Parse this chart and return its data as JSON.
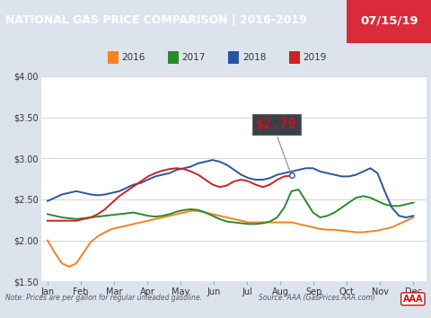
{
  "title_left": "NATIONAL GAS PRICE COMPARISON | 2016-2019",
  "title_right": "07/15/19",
  "title_bg_color": "#1b4586",
  "title_right_bg_color": "#d92b3a",
  "title_text_color": "#ffffff",
  "note_text": "Note: Prices are per gallon for regular unleaded gasoline.",
  "source_text": "Source: AAA (GasPrices.AAA.com)",
  "bg_color": "#dde3ed",
  "plot_bg_color": "#ffffff",
  "ylim": [
    1.5,
    4.0
  ],
  "yticks": [
    1.5,
    2.0,
    2.5,
    3.0,
    3.5,
    4.0
  ],
  "months": [
    "Jan",
    "Feb",
    "Mar",
    "Apr",
    "May",
    "Jun",
    "Jul",
    "Aug",
    "Sep",
    "Oct",
    "Nov",
    "Dec"
  ],
  "annotation_text": "$2.79",
  "annotation_box_color": "#3a3f4a",
  "annotation_text_color": "#cc1111",
  "colors": {
    "2016": "#f5821f",
    "2017": "#2a8a2a",
    "2018": "#2955a0",
    "2019": "#cc2222"
  },
  "data_2016": [
    2.0,
    1.85,
    1.72,
    1.68,
    1.72,
    1.85,
    1.98,
    2.05,
    2.1,
    2.14,
    2.16,
    2.18,
    2.2,
    2.22,
    2.24,
    2.26,
    2.28,
    2.3,
    2.32,
    2.34,
    2.36,
    2.36,
    2.34,
    2.32,
    2.3,
    2.28,
    2.26,
    2.24,
    2.22,
    2.22,
    2.22,
    2.22,
    2.22,
    2.22,
    2.22,
    2.2,
    2.18,
    2.16,
    2.14,
    2.13,
    2.13,
    2.12,
    2.11,
    2.1,
    2.1,
    2.11,
    2.12,
    2.14,
    2.16,
    2.2,
    2.24,
    2.28
  ],
  "data_2017": [
    2.32,
    2.3,
    2.28,
    2.27,
    2.26,
    2.27,
    2.28,
    2.29,
    2.3,
    2.31,
    2.32,
    2.33,
    2.34,
    2.32,
    2.3,
    2.29,
    2.3,
    2.32,
    2.35,
    2.37,
    2.38,
    2.37,
    2.34,
    2.3,
    2.26,
    2.23,
    2.22,
    2.21,
    2.2,
    2.2,
    2.21,
    2.23,
    2.28,
    2.4,
    2.6,
    2.62,
    2.48,
    2.34,
    2.28,
    2.3,
    2.34,
    2.4,
    2.46,
    2.52,
    2.54,
    2.52,
    2.48,
    2.44,
    2.42,
    2.42,
    2.44,
    2.46
  ],
  "data_2018": [
    2.48,
    2.52,
    2.56,
    2.58,
    2.6,
    2.58,
    2.56,
    2.55,
    2.56,
    2.58,
    2.6,
    2.64,
    2.68,
    2.7,
    2.74,
    2.78,
    2.8,
    2.82,
    2.86,
    2.88,
    2.9,
    2.94,
    2.96,
    2.98,
    2.96,
    2.92,
    2.86,
    2.8,
    2.76,
    2.74,
    2.74,
    2.76,
    2.8,
    2.82,
    2.84,
    2.86,
    2.88,
    2.88,
    2.84,
    2.82,
    2.8,
    2.78,
    2.78,
    2.8,
    2.84,
    2.88,
    2.82,
    2.6,
    2.4,
    2.3,
    2.28,
    2.3
  ],
  "data_2019": [
    2.24,
    2.24,
    2.24,
    2.24,
    2.24,
    2.26,
    2.28,
    2.32,
    2.38,
    2.46,
    2.54,
    2.6,
    2.66,
    2.72,
    2.78,
    2.82,
    2.85,
    2.87,
    2.88,
    2.87,
    2.84,
    2.8,
    2.74,
    2.68,
    2.65,
    2.67,
    2.72,
    2.74,
    2.72,
    2.68,
    2.65,
    2.68,
    2.74,
    2.78,
    2.79,
    null,
    null,
    null,
    null,
    null,
    null,
    null,
    null,
    null,
    null,
    null,
    null,
    null,
    null,
    null,
    null,
    null
  ]
}
